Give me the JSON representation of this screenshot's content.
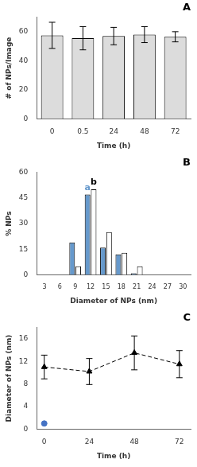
{
  "chart_data": [
    {
      "type": "bar",
      "title": "A",
      "categories": [
        "0",
        "0.5",
        "24",
        "48",
        "72"
      ],
      "values": [
        57.5,
        55.5,
        57.0,
        58.0,
        56.5
      ],
      "errors": [
        9.0,
        8.0,
        6.0,
        5.5,
        3.5
      ],
      "color": "#DCDCDC",
      "xlabel": "Time (h)",
      "ylabel": "# of NPs/Image",
      "ylim": [
        0,
        70
      ],
      "yticks": [
        0,
        20,
        40,
        60
      ],
      "grid": false
    },
    {
      "type": "bar",
      "title": "B",
      "categories": [
        "3",
        "6",
        "9",
        "12",
        "15",
        "18",
        "21",
        "24",
        "27",
        "30"
      ],
      "series": [
        {
          "color": "#6699CC",
          "values": [
            0,
            0,
            19,
            47,
            16,
            12,
            1,
            0,
            0,
            0
          ]
        },
        {
          "color": "#FFFFFF",
          "values": [
            0,
            0,
            5,
            50,
            25,
            13,
            5,
            0,
            0,
            0
          ]
        }
      ],
      "annotations": [
        {
          "text": "a",
          "color": "#6699CC"
        },
        {
          "text": "b",
          "color": "#000000"
        }
      ],
      "xlabel": "Diameter of NPs (nm)",
      "ylabel": "% NPs",
      "ylim": [
        0,
        60
      ],
      "yticks": [
        0,
        15,
        30,
        45,
        60
      ],
      "grid": false
    },
    {
      "type": "line",
      "title": "C",
      "series": [
        {
          "type": "scatter",
          "color": "#4472C4",
          "marker": "circle",
          "x": [
            0
          ],
          "values": [
            1.0
          ]
        },
        {
          "type": "line",
          "color": "#000000",
          "line_style": "dashed",
          "marker": "triangle",
          "x": [
            0,
            24,
            48,
            72
          ],
          "values": [
            11.0,
            10.2,
            13.5,
            11.5
          ],
          "errors": [
            2.1,
            2.3,
            3.0,
            2.4
          ]
        }
      ],
      "xlabel": "Time (h)",
      "ylabel": "Diameter of NPs (nm)",
      "xlim": [
        -4,
        78
      ],
      "xticks": [
        0,
        24,
        48,
        72
      ],
      "ylim": [
        0,
        18
      ],
      "yticks": [
        0,
        4,
        8,
        12,
        16
      ],
      "grid": false
    }
  ]
}
